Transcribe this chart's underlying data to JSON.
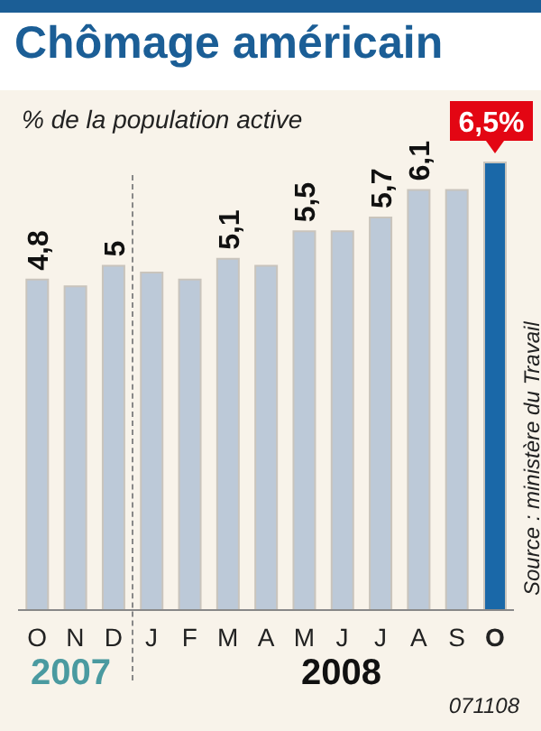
{
  "chart_data": {
    "type": "bar",
    "title": "Chômage américain",
    "subtitle": "% de la population active",
    "categories": [
      "O",
      "N",
      "D",
      "J",
      "F",
      "M",
      "A",
      "M",
      "J",
      "J",
      "A",
      "S",
      "O"
    ],
    "values": [
      4.8,
      4.7,
      5,
      4.9,
      4.8,
      5.1,
      5.0,
      5.5,
      5.5,
      5.7,
      6.1,
      6.1,
      6.5
    ],
    "value_labels": [
      "4,8",
      null,
      "5",
      null,
      null,
      "5,1",
      null,
      "5,5",
      null,
      "5,7",
      "6,1",
      null,
      "6,5%"
    ],
    "colors": [
      "#bcc9d8",
      "#bcc9d8",
      "#bcc9d8",
      "#bcc9d8",
      "#bcc9d8",
      "#bcc9d8",
      "#bcc9d8",
      "#bcc9d8",
      "#bcc9d8",
      "#bcc9d8",
      "#bcc9d8",
      "#bcc9d8",
      "#1a68a8"
    ],
    "annotations": [
      "2007",
      "2008",
      "Source : ministère du Travail",
      "071108"
    ]
  }
}
